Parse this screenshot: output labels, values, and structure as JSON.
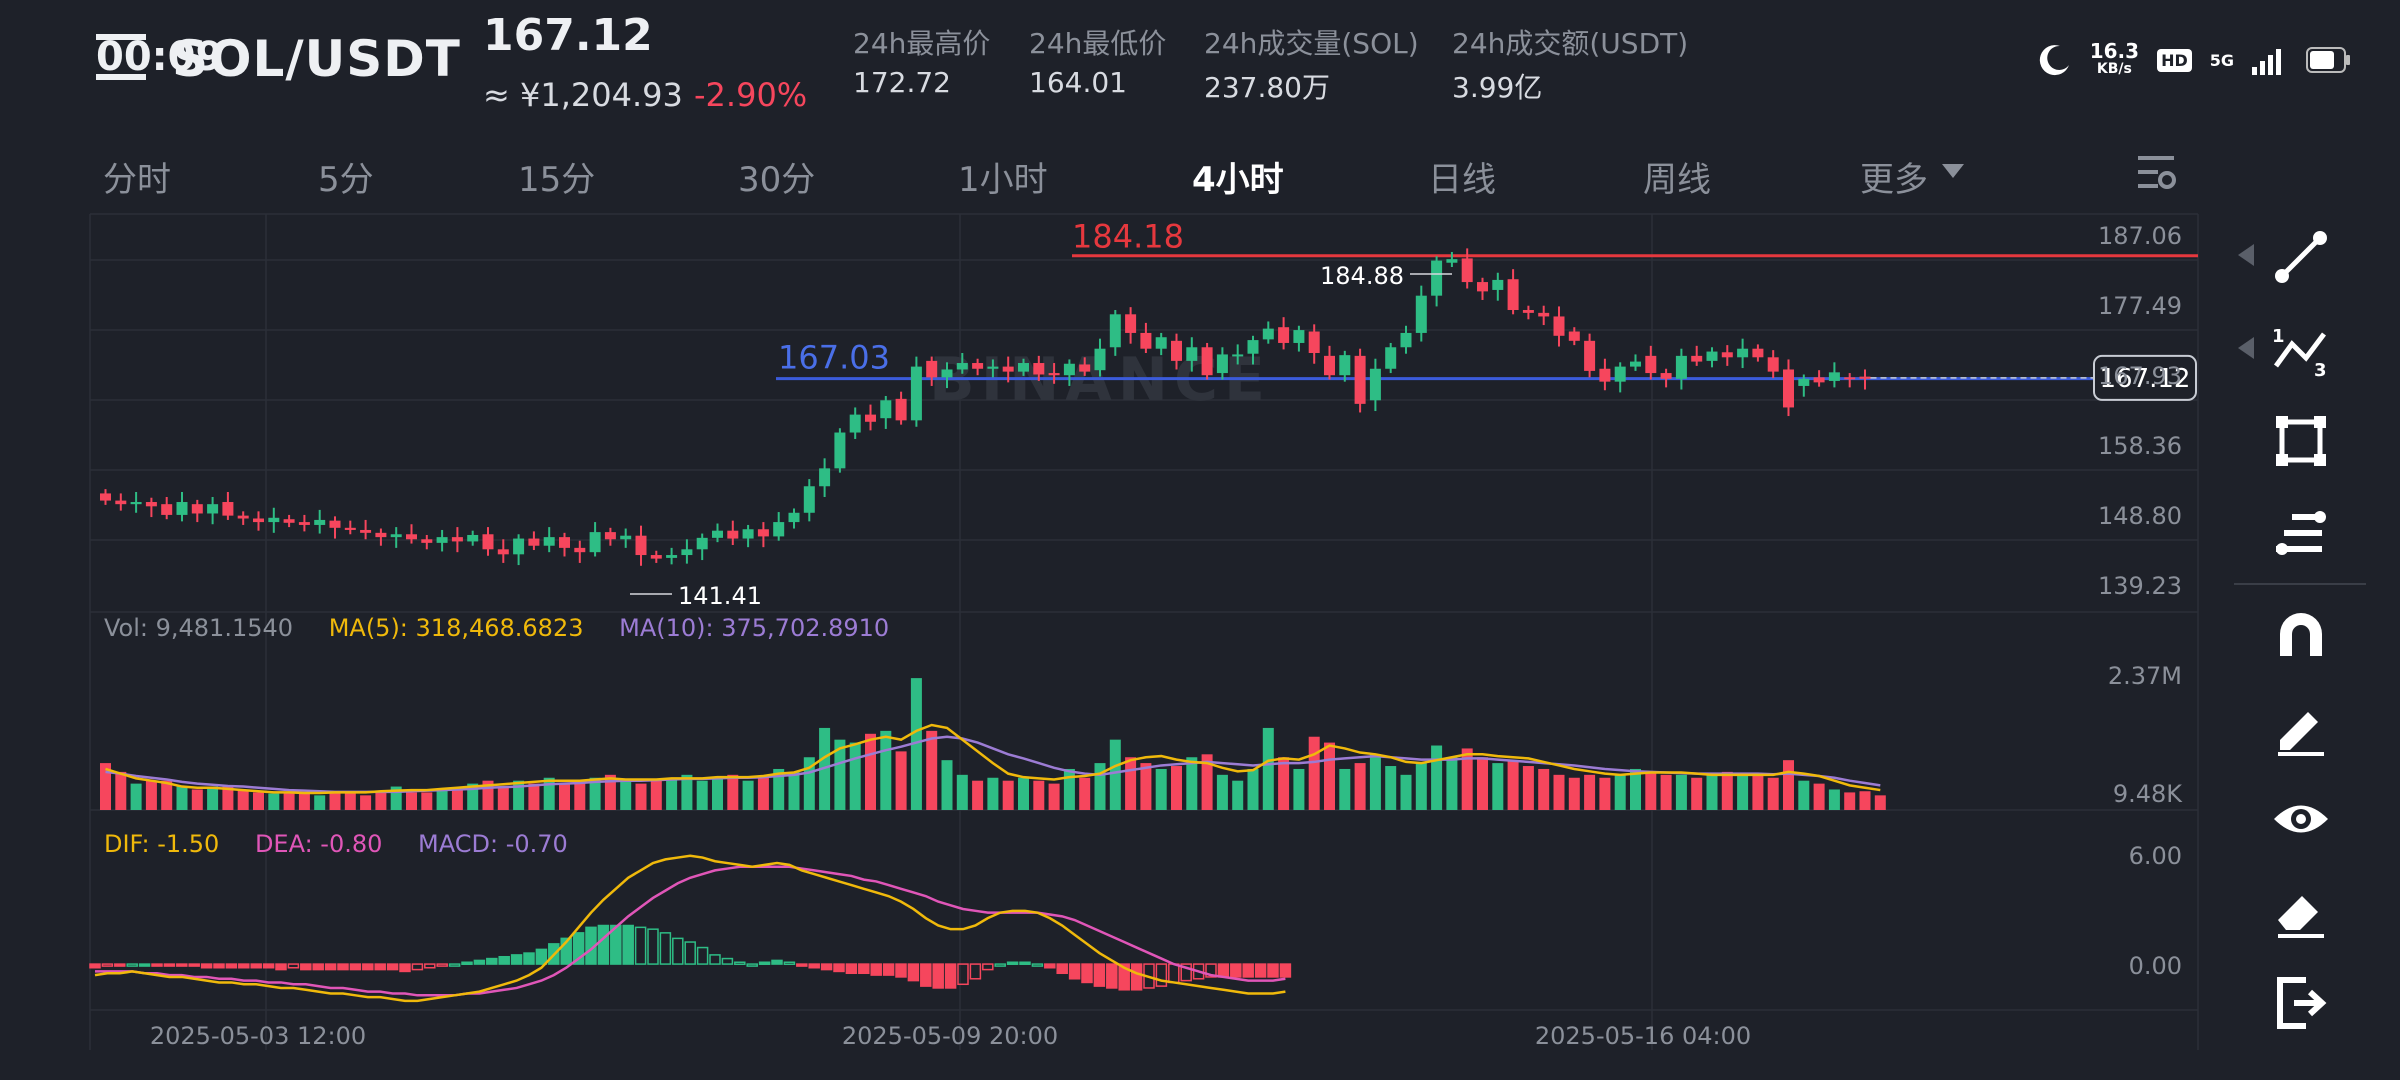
{
  "status_bar": {
    "time": "00:09",
    "speed": "16.3",
    "speed_unit": "KB/s",
    "network": "5G",
    "hd": "HD"
  },
  "header": {
    "pair": "SOL/USDT",
    "price": "167.12",
    "cny_price": "≈ ¥1,204.93",
    "change": "-2.90%",
    "stats": [
      {
        "label": "24h最高价",
        "value": "172.72"
      },
      {
        "label": "24h最低价",
        "value": "164.01"
      },
      {
        "label": "24h成交量(SOL)",
        "value": "237.80万"
      },
      {
        "label": "24h成交额(USDT)",
        "value": "3.99亿"
      }
    ]
  },
  "tabs": [
    "分时",
    "5分",
    "15分",
    "30分",
    "1小时",
    "4小时",
    "日线",
    "周线",
    "更多"
  ],
  "active_tab": "4小时",
  "colors": {
    "up": "#2ebd85",
    "down": "#f6465d",
    "bg": "#1e2129",
    "grid": "#2b2f38",
    "ma5": "#f0b90b",
    "ma10": "#9c7cd4",
    "dea": "#e056b8",
    "hline_red": "#e6383e",
    "hline_blue": "#3b5bdb"
  },
  "watermark": "BINANCE",
  "chart_data": {
    "type": "candlestick",
    "price_axis": {
      "ticks": [
        "187.06",
        "177.49",
        "167.93",
        "158.36",
        "148.80",
        "139.23"
      ],
      "range": [
        134.45,
        190.0
      ]
    },
    "current_price_label": "167.12",
    "high_marker": "184.88",
    "low_marker": "141.41",
    "hlines": [
      {
        "label": "184.18",
        "value": 184.18,
        "color": "red"
      },
      {
        "label": "167.03",
        "value": 167.03,
        "color": "blue"
      }
    ],
    "x_labels": [
      "2025-05-03 12:00",
      "2025-05-09 20:00",
      "2025-05-16 04:00"
    ],
    "candles": [
      {
        "o": 151.0,
        "c": 150.0
      },
      {
        "o": 150.0,
        "c": 149.5
      },
      {
        "o": 149.5,
        "c": 149.8
      },
      {
        "o": 149.8,
        "c": 149.2
      },
      {
        "o": 149.5,
        "c": 148.0
      },
      {
        "o": 148.0,
        "c": 149.8
      },
      {
        "o": 149.5,
        "c": 148.2
      },
      {
        "o": 148.2,
        "c": 149.5
      },
      {
        "o": 149.8,
        "c": 147.9
      },
      {
        "o": 147.9,
        "c": 147.5
      },
      {
        "o": 147.5,
        "c": 147.0
      },
      {
        "o": 147.0,
        "c": 147.6
      },
      {
        "o": 147.4,
        "c": 146.9
      },
      {
        "o": 147.0,
        "c": 146.6
      },
      {
        "o": 146.6,
        "c": 147.3
      },
      {
        "o": 147.2,
        "c": 146.2
      },
      {
        "o": 146.2,
        "c": 145.9
      },
      {
        "o": 145.9,
        "c": 145.5
      },
      {
        "o": 145.5,
        "c": 144.9
      },
      {
        "o": 144.9,
        "c": 145.3
      },
      {
        "o": 145.3,
        "c": 144.6
      },
      {
        "o": 144.6,
        "c": 144.1
      },
      {
        "o": 144.1,
        "c": 144.9
      },
      {
        "o": 144.9,
        "c": 144.3
      },
      {
        "o": 144.3,
        "c": 145.2
      },
      {
        "o": 145.3,
        "c": 143.2
      },
      {
        "o": 143.2,
        "c": 142.5
      },
      {
        "o": 142.5,
        "c": 144.7
      },
      {
        "o": 144.7,
        "c": 143.7
      },
      {
        "o": 143.7,
        "c": 144.9
      },
      {
        "o": 144.9,
        "c": 143.4
      },
      {
        "o": 143.4,
        "c": 142.8
      },
      {
        "o": 142.8,
        "c": 145.6
      },
      {
        "o": 145.6,
        "c": 144.6
      },
      {
        "o": 144.6,
        "c": 145.1
      },
      {
        "o": 145.1,
        "c": 142.4
      },
      {
        "o": 142.4,
        "c": 141.9
      },
      {
        "o": 142.0,
        "c": 142.4
      },
      {
        "o": 142.4,
        "c": 143.2
      },
      {
        "o": 143.2,
        "c": 144.8
      },
      {
        "o": 144.8,
        "c": 145.8
      },
      {
        "o": 145.8,
        "c": 144.7
      },
      {
        "o": 144.7,
        "c": 146.0
      },
      {
        "o": 146.0,
        "c": 145.0
      },
      {
        "o": 145.0,
        "c": 147.0
      },
      {
        "o": 147.0,
        "c": 148.3
      },
      {
        "o": 148.3,
        "c": 152.0
      },
      {
        "o": 152.0,
        "c": 154.5
      },
      {
        "o": 154.5,
        "c": 159.5
      },
      {
        "o": 159.5,
        "c": 162.0
      },
      {
        "o": 162.0,
        "c": 161.0
      },
      {
        "o": 161.5,
        "c": 164.0
      },
      {
        "o": 164.2,
        "c": 161.2
      },
      {
        "o": 161.2,
        "c": 168.7
      },
      {
        "o": 169.5,
        "c": 167.2
      },
      {
        "o": 167.2,
        "c": 168.3
      },
      {
        "o": 168.3,
        "c": 169.2
      },
      {
        "o": 169.2,
        "c": 168.4
      },
      {
        "o": 168.4,
        "c": 168.7
      },
      {
        "o": 168.7,
        "c": 168.0
      },
      {
        "o": 168.0,
        "c": 169.2
      },
      {
        "o": 169.2,
        "c": 167.6
      },
      {
        "o": 167.8,
        "c": 167.5
      },
      {
        "o": 167.5,
        "c": 169.1
      },
      {
        "o": 169.0,
        "c": 168.0
      },
      {
        "o": 168.2,
        "c": 171.2
      },
      {
        "o": 171.4,
        "c": 176.0
      },
      {
        "o": 176.0,
        "c": 173.4
      },
      {
        "o": 173.4,
        "c": 171.2
      },
      {
        "o": 171.2,
        "c": 172.8
      },
      {
        "o": 172.3,
        "c": 169.5
      },
      {
        "o": 169.5,
        "c": 171.4
      },
      {
        "o": 171.4,
        "c": 167.5
      },
      {
        "o": 167.8,
        "c": 170.4
      },
      {
        "o": 170.2,
        "c": 170.4
      },
      {
        "o": 170.5,
        "c": 172.4
      },
      {
        "o": 172.5,
        "c": 174.0
      },
      {
        "o": 174.2,
        "c": 172.0
      },
      {
        "o": 172.0,
        "c": 173.8
      },
      {
        "o": 173.6,
        "c": 170.6
      },
      {
        "o": 170.2,
        "c": 167.5
      },
      {
        "o": 167.5,
        "c": 170.3
      },
      {
        "o": 170.2,
        "c": 163.5
      },
      {
        "o": 164.0,
        "c": 168.4
      },
      {
        "o": 168.4,
        "c": 171.4
      },
      {
        "o": 171.4,
        "c": 173.4
      },
      {
        "o": 173.4,
        "c": 178.6
      },
      {
        "o": 178.6,
        "c": 183.5
      },
      {
        "o": 183.2,
        "c": 183.7
      },
      {
        "o": 183.8,
        "c": 180.5
      },
      {
        "o": 180.5,
        "c": 179.2
      },
      {
        "o": 179.4,
        "c": 180.8
      },
      {
        "o": 180.9,
        "c": 176.6
      },
      {
        "o": 176.6,
        "c": 176.2
      },
      {
        "o": 176.2,
        "c": 175.7
      },
      {
        "o": 175.7,
        "c": 173.0
      },
      {
        "o": 173.6,
        "c": 172.3
      },
      {
        "o": 172.3,
        "c": 168.1
      },
      {
        "o": 168.4,
        "c": 166.6
      },
      {
        "o": 166.6,
        "c": 168.7
      },
      {
        "o": 168.7,
        "c": 169.4
      },
      {
        "o": 170.2,
        "c": 167.8
      },
      {
        "o": 167.8,
        "c": 167.0
      },
      {
        "o": 167.0,
        "c": 170.2
      },
      {
        "o": 170.2,
        "c": 169.4
      },
      {
        "o": 169.5,
        "c": 170.8
      },
      {
        "o": 170.7,
        "c": 170.0
      },
      {
        "o": 170.0,
        "c": 171.2
      },
      {
        "o": 171.2,
        "c": 170.0
      },
      {
        "o": 170.0,
        "c": 168.0
      },
      {
        "o": 168.3,
        "c": 163.0
      },
      {
        "o": 166.0,
        "c": 167.0
      },
      {
        "o": 167.2,
        "c": 166.5
      },
      {
        "o": 166.7,
        "c": 167.9
      },
      {
        "o": 167.2,
        "c": 167.0
      },
      {
        "o": 167.3,
        "c": 167.0
      }
    ],
    "volume_panel": {
      "label": "Vol: 9,481.1540",
      "ma5_label": "MA(5): 318,468.6823",
      "ma10_label": "MA(10): 375,702.8910",
      "ticks": [
        "2.37M",
        "9.48K"
      ],
      "range": [
        0,
        2.9
      ],
      "unit": "M",
      "heights": [
        0.8,
        0.65,
        0.45,
        0.5,
        0.5,
        0.4,
        0.35,
        0.4,
        0.4,
        0.35,
        0.3,
        0.28,
        0.3,
        0.3,
        0.25,
        0.3,
        0.32,
        0.25,
        0.3,
        0.4,
        0.3,
        0.3,
        0.35,
        0.38,
        0.45,
        0.5,
        0.4,
        0.5,
        0.45,
        0.55,
        0.45,
        0.5,
        0.55,
        0.6,
        0.5,
        0.45,
        0.5,
        0.55,
        0.6,
        0.5,
        0.55,
        0.6,
        0.5,
        0.55,
        0.7,
        0.65,
        0.9,
        1.4,
        1.2,
        1.15,
        1.3,
        1.35,
        1.0,
        2.25,
        1.35,
        0.85,
        0.6,
        0.5,
        0.55,
        0.5,
        0.55,
        0.5,
        0.45,
        0.7,
        0.55,
        0.8,
        1.2,
        0.9,
        0.8,
        0.7,
        0.75,
        0.9,
        0.95,
        0.6,
        0.5,
        0.7,
        1.4,
        0.9,
        0.7,
        1.25,
        1.15,
        0.7,
        0.8,
        0.95,
        0.75,
        0.6,
        0.8,
        1.1,
        0.9,
        1.05,
        0.9,
        0.8,
        0.85,
        0.75,
        0.7,
        0.6,
        0.55,
        0.6,
        0.55,
        0.6,
        0.7,
        0.65,
        0.6,
        0.6,
        0.55,
        0.6,
        0.65,
        0.6,
        0.6,
        0.55,
        0.85,
        0.5,
        0.45,
        0.35,
        0.3,
        0.32,
        0.25
      ],
      "ma5": [
        0.7,
        0.62,
        0.54,
        0.5,
        0.46,
        0.4,
        0.38,
        0.38,
        0.36,
        0.34,
        0.32,
        0.3,
        0.3,
        0.29,
        0.29,
        0.3,
        0.3,
        0.3,
        0.32,
        0.33,
        0.34,
        0.34,
        0.36,
        0.38,
        0.4,
        0.42,
        0.44,
        0.46,
        0.48,
        0.5,
        0.5,
        0.5,
        0.52,
        0.54,
        0.52,
        0.52,
        0.52,
        0.54,
        0.54,
        0.54,
        0.56,
        0.56,
        0.56,
        0.58,
        0.62,
        0.64,
        0.72,
        0.9,
        1.05,
        1.12,
        1.2,
        1.25,
        1.2,
        1.35,
        1.45,
        1.4,
        1.2,
        1.0,
        0.8,
        0.62,
        0.56,
        0.54,
        0.52,
        0.56,
        0.58,
        0.62,
        0.75,
        0.85,
        0.9,
        0.92,
        0.86,
        0.82,
        0.8,
        0.72,
        0.66,
        0.68,
        0.84,
        0.88,
        0.86,
        0.95,
        1.1,
        1.05,
        0.98,
        0.95,
        0.9,
        0.82,
        0.8,
        0.85,
        0.9,
        0.95,
        0.95,
        0.92,
        0.9,
        0.88,
        0.82,
        0.76,
        0.7,
        0.66,
        0.62,
        0.6,
        0.62,
        0.64,
        0.64,
        0.64,
        0.62,
        0.6,
        0.6,
        0.6,
        0.6,
        0.6,
        0.65,
        0.62,
        0.58,
        0.5,
        0.42,
        0.38,
        0.34
      ],
      "ma10": [
        0.65,
        0.62,
        0.58,
        0.55,
        0.52,
        0.48,
        0.45,
        0.43,
        0.41,
        0.4,
        0.38,
        0.36,
        0.34,
        0.33,
        0.32,
        0.31,
        0.31,
        0.31,
        0.31,
        0.31,
        0.32,
        0.33,
        0.34,
        0.35,
        0.36,
        0.38,
        0.39,
        0.4,
        0.42,
        0.44,
        0.45,
        0.46,
        0.48,
        0.49,
        0.5,
        0.5,
        0.51,
        0.52,
        0.53,
        0.53,
        0.54,
        0.55,
        0.55,
        0.56,
        0.58,
        0.6,
        0.64,
        0.72,
        0.8,
        0.88,
        0.95,
        1.02,
        1.08,
        1.15,
        1.22,
        1.25,
        1.22,
        1.15,
        1.05,
        0.95,
        0.88,
        0.8,
        0.72,
        0.66,
        0.62,
        0.6,
        0.64,
        0.68,
        0.72,
        0.76,
        0.78,
        0.8,
        0.82,
        0.8,
        0.78,
        0.76,
        0.78,
        0.8,
        0.8,
        0.82,
        0.86,
        0.88,
        0.9,
        0.92,
        0.9,
        0.88,
        0.86,
        0.86,
        0.86,
        0.88,
        0.88,
        0.86,
        0.84,
        0.82,
        0.8,
        0.78,
        0.76,
        0.73,
        0.7,
        0.68,
        0.66,
        0.65,
        0.64,
        0.63,
        0.62,
        0.62,
        0.62,
        0.62,
        0.62,
        0.61,
        0.62,
        0.6,
        0.58,
        0.55,
        0.5,
        0.46,
        0.42
      ]
    },
    "macd_panel": {
      "dif_label": "DIF: -1.50",
      "dea_label": "DEA: -0.80",
      "macd_label": "MACD: -0.70",
      "ticks": [
        "6.00",
        "0.00"
      ],
      "range": [
        -2.5,
        7.3
      ],
      "dif": [
        -0.6,
        -0.5,
        -0.5,
        -0.4,
        -0.5,
        -0.6,
        -0.7,
        -0.7,
        -0.8,
        -0.9,
        -1.0,
        -1.0,
        -1.1,
        -1.1,
        -1.2,
        -1.3,
        -1.3,
        -1.4,
        -1.5,
        -1.6,
        -1.6,
        -1.7,
        -1.8,
        -1.8,
        -1.9,
        -2.0,
        -2.0,
        -1.9,
        -1.8,
        -1.7,
        -1.6,
        -1.5,
        -1.3,
        -1.1,
        -0.9,
        -0.6,
        -0.2,
        0.5,
        1.2,
        2.0,
        2.8,
        3.5,
        4.1,
        4.7,
        5.1,
        5.5,
        5.7,
        5.8,
        5.9,
        5.8,
        5.6,
        5.5,
        5.4,
        5.3,
        5.4,
        5.5,
        5.4,
        5.1,
        4.9,
        4.7,
        4.5,
        4.3,
        4.1,
        3.9,
        3.7,
        3.4,
        3.0,
        2.5,
        2.1,
        1.9,
        1.9,
        2.1,
        2.5,
        2.8,
        2.9,
        2.9,
        2.8,
        2.5,
        2.1,
        1.6,
        1.1,
        0.6,
        0.2,
        -0.2,
        -0.5,
        -0.7,
        -0.9,
        -1.0,
        -1.1,
        -1.2,
        -1.3,
        -1.4,
        -1.5,
        -1.6,
        -1.6,
        -1.6,
        -1.5
      ],
      "dea": [
        -0.4,
        -0.4,
        -0.4,
        -0.4,
        -0.5,
        -0.5,
        -0.6,
        -0.6,
        -0.7,
        -0.7,
        -0.8,
        -0.8,
        -0.9,
        -0.9,
        -1.0,
        -1.0,
        -1.1,
        -1.1,
        -1.2,
        -1.3,
        -1.3,
        -1.4,
        -1.5,
        -1.5,
        -1.6,
        -1.6,
        -1.7,
        -1.7,
        -1.7,
        -1.7,
        -1.6,
        -1.6,
        -1.5,
        -1.4,
        -1.3,
        -1.1,
        -0.9,
        -0.6,
        -0.2,
        0.3,
        0.8,
        1.4,
        2.0,
        2.6,
        3.1,
        3.6,
        4.0,
        4.4,
        4.7,
        4.9,
        5.1,
        5.2,
        5.3,
        5.3,
        5.3,
        5.3,
        5.3,
        5.2,
        5.1,
        5.0,
        4.9,
        4.8,
        4.6,
        4.5,
        4.3,
        4.1,
        3.9,
        3.7,
        3.4,
        3.2,
        3.0,
        2.9,
        2.8,
        2.8,
        2.8,
        2.8,
        2.8,
        2.7,
        2.6,
        2.4,
        2.1,
        1.8,
        1.5,
        1.2,
        0.9,
        0.6,
        0.3,
        0.0,
        -0.2,
        -0.4,
        -0.6,
        -0.7,
        -0.8,
        -0.9,
        -0.9,
        -0.9,
        -0.8
      ],
      "hist": [
        -0.2,
        -0.1,
        -0.1,
        0.0,
        0.0,
        -0.1,
        -0.1,
        -0.1,
        -0.1,
        -0.2,
        -0.2,
        -0.2,
        -0.2,
        -0.2,
        -0.2,
        -0.3,
        -0.2,
        -0.3,
        -0.3,
        -0.3,
        -0.3,
        -0.3,
        -0.3,
        -0.3,
        -0.3,
        -0.4,
        -0.3,
        -0.2,
        -0.1,
        0.0,
        0.1,
        0.2,
        0.3,
        0.4,
        0.5,
        0.6,
        0.8,
        1.1,
        1.4,
        1.7,
        2.0,
        2.1,
        2.1,
        2.1,
        2.0,
        1.9,
        1.7,
        1.4,
        1.2,
        0.9,
        0.5,
        0.3,
        0.1,
        0.0,
        0.1,
        0.2,
        0.1,
        -0.1,
        -0.2,
        -0.3,
        -0.4,
        -0.5,
        -0.5,
        -0.6,
        -0.6,
        -0.7,
        -0.9,
        -1.2,
        -1.3,
        -1.3,
        -1.1,
        -0.8,
        -0.3,
        0.0,
        0.1,
        0.1,
        0.0,
        -0.2,
        -0.5,
        -0.8,
        -1.0,
        -1.2,
        -1.3,
        -1.4,
        -1.4,
        -1.3,
        -1.2,
        -1.0,
        -0.9,
        -0.8,
        -0.7,
        -0.7,
        -0.7,
        -0.7,
        -0.7,
        -0.7,
        -0.7
      ]
    }
  },
  "toolbar": [
    "line-tool-icon",
    "multi-segment-icon",
    "rectangle-icon",
    "fibonacci-icon",
    "magnet-icon",
    "pencil-icon",
    "eye-icon",
    "eraser-icon",
    "exit-icon"
  ]
}
